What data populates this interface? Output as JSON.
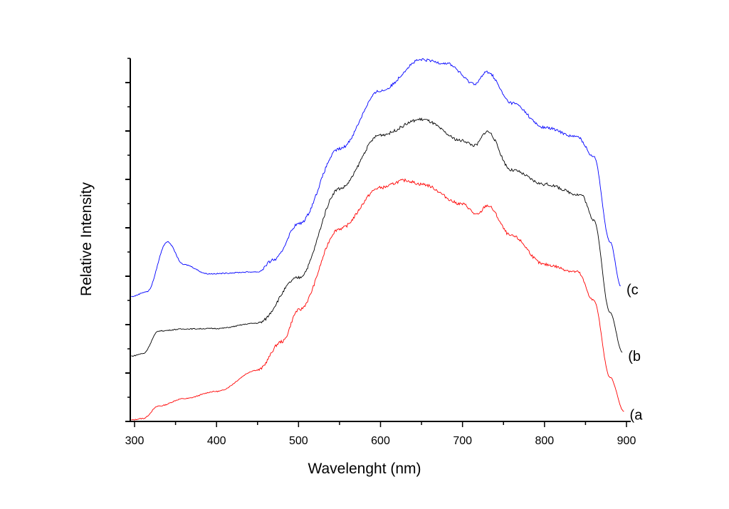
{
  "chart_data": {
    "type": "line",
    "title": "",
    "xlabel": "Wavelenght (nm)",
    "ylabel": "Relative Intensity",
    "xlim": [
      295,
      905
    ],
    "ylim": [
      0,
      7.5
    ],
    "xticks": [
      300,
      400,
      500,
      600,
      700,
      800,
      900
    ],
    "yticks_major": [
      0,
      1,
      2,
      3,
      4,
      5,
      6,
      7
    ],
    "ytick_labels_shown": false,
    "grid": false,
    "legend": "curve labels at right end",
    "series": [
      {
        "name": "(a",
        "color": "#ff0000",
        "x": [
          296,
          310,
          330,
          360,
          400,
          450,
          480,
          500,
          550,
          600,
          630,
          650,
          700,
          718,
          730,
          760,
          800,
          840,
          860,
          880,
          897
        ],
        "y": [
          0.03,
          0.06,
          0.32,
          0.47,
          0.62,
          1.06,
          1.65,
          2.3,
          3.98,
          4.83,
          4.98,
          4.9,
          4.49,
          4.27,
          4.46,
          3.83,
          3.24,
          3.09,
          2.5,
          0.91,
          0.21
        ]
      },
      {
        "name": "(b",
        "color": "#000000",
        "x": [
          296,
          310,
          330,
          360,
          400,
          450,
          500,
          550,
          600,
          650,
          700,
          715,
          730,
          760,
          800,
          845,
          860,
          880,
          895
        ],
        "y": [
          1.35,
          1.4,
          1.87,
          1.91,
          1.92,
          2.03,
          2.97,
          4.81,
          5.92,
          6.24,
          5.8,
          5.7,
          5.99,
          5.19,
          4.9,
          4.68,
          4.17,
          2.25,
          1.43
        ]
      },
      {
        "name": "(c",
        "color": "#0000ff",
        "x": [
          296,
          315,
          340,
          360,
          390,
          450,
          470,
          500,
          550,
          600,
          650,
          680,
          715,
          730,
          760,
          800,
          840,
          860,
          880,
          893
        ],
        "y": [
          2.58,
          2.68,
          3.71,
          3.24,
          3.05,
          3.09,
          3.34,
          4.08,
          5.63,
          6.83,
          7.47,
          7.4,
          6.98,
          7.22,
          6.58,
          6.07,
          5.88,
          5.48,
          3.71,
          2.8
        ]
      }
    ]
  }
}
